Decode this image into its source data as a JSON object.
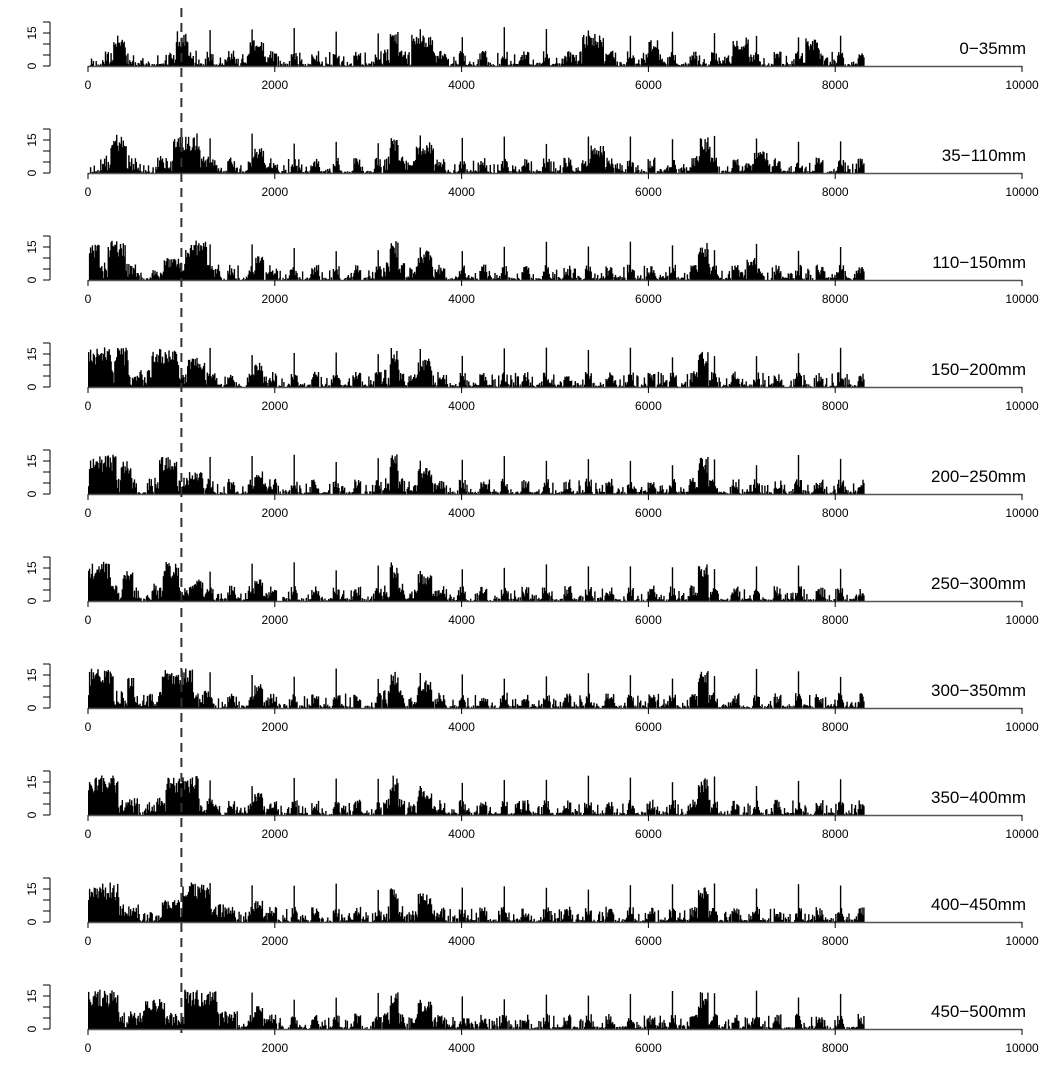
{
  "chart_data": {
    "type": "bar",
    "layout": "10 stacked panels sharing a common x-axis",
    "xlim": [
      0,
      10000
    ],
    "ylim": [
      0,
      20
    ],
    "xticks": [
      0,
      2000,
      4000,
      6000,
      8000,
      10000
    ],
    "xtick_labels": [
      "0",
      "2000",
      "4000",
      "6000",
      "8000",
      "10000"
    ],
    "yticks": [
      0,
      15
    ],
    "ytick_labels": [
      "0",
      "15"
    ],
    "reference_line": {
      "x": 1000,
      "style": "dashed"
    },
    "data_extent": [
      0,
      8300
    ],
    "grid": false,
    "colors": {
      "bars": "#000000",
      "background": "#ffffff"
    },
    "panels": [
      {
        "label": "0−35mm",
        "clusters": [
          [
            330,
            70,
            14
          ],
          [
            1000,
            70,
            16
          ],
          [
            1800,
            80,
            12
          ],
          [
            3270,
            50,
            17
          ],
          [
            3570,
            120,
            15
          ],
          [
            5400,
            120,
            15
          ],
          [
            6050,
            60,
            12
          ],
          [
            6980,
            90,
            13
          ],
          [
            7750,
            80,
            13
          ]
        ]
      },
      {
        "label": "35−110mm",
        "clusters": [
          [
            320,
            90,
            18
          ],
          [
            1050,
            150,
            18
          ],
          [
            1820,
            60,
            12
          ],
          [
            3270,
            50,
            17
          ],
          [
            3600,
            100,
            14
          ],
          [
            5450,
            80,
            13
          ],
          [
            6600,
            60,
            17
          ],
          [
            7200,
            80,
            10
          ]
        ]
      },
      {
        "label": "110−150mm",
        "clusters": [
          [
            60,
            60,
            18
          ],
          [
            300,
            100,
            18
          ],
          [
            900,
            100,
            10
          ],
          [
            1150,
            120,
            18
          ],
          [
            1830,
            50,
            11
          ],
          [
            3270,
            50,
            18
          ],
          [
            3600,
            80,
            14
          ],
          [
            6580,
            60,
            17
          ],
          [
            7100,
            60,
            10
          ]
        ]
      },
      {
        "label": "150−200mm",
        "clusters": [
          [
            100,
            150,
            18
          ],
          [
            350,
            80,
            18
          ],
          [
            820,
            150,
            18
          ],
          [
            1150,
            100,
            14
          ],
          [
            1820,
            50,
            11
          ],
          [
            3270,
            50,
            18
          ],
          [
            3600,
            80,
            13
          ],
          [
            6580,
            60,
            17
          ]
        ]
      },
      {
        "label": "200−250mm",
        "clusters": [
          [
            150,
            150,
            18
          ],
          [
            400,
            60,
            16
          ],
          [
            850,
            100,
            18
          ],
          [
            1150,
            80,
            10
          ],
          [
            1820,
            50,
            11
          ],
          [
            3270,
            50,
            18
          ],
          [
            3600,
            80,
            13
          ],
          [
            6580,
            60,
            17
          ]
        ]
      },
      {
        "label": "250−300mm",
        "clusters": [
          [
            80,
            100,
            18
          ],
          [
            180,
            60,
            18
          ],
          [
            420,
            60,
            14
          ],
          [
            880,
            90,
            18
          ],
          [
            1150,
            80,
            10
          ],
          [
            1820,
            50,
            11
          ],
          [
            3270,
            50,
            18
          ],
          [
            3600,
            80,
            13
          ],
          [
            6580,
            60,
            17
          ]
        ]
      },
      {
        "label": "300−350mm",
        "clusters": [
          [
            60,
            60,
            18
          ],
          [
            180,
            90,
            18
          ],
          [
            450,
            40,
            14
          ],
          [
            950,
            170,
            18
          ],
          [
            1820,
            50,
            11
          ],
          [
            3270,
            50,
            18
          ],
          [
            3600,
            80,
            13
          ],
          [
            6580,
            60,
            17
          ]
        ]
      },
      {
        "label": "350−400mm",
        "clusters": [
          [
            150,
            170,
            18
          ],
          [
            880,
            60,
            16
          ],
          [
            1000,
            180,
            18
          ],
          [
            1820,
            50,
            11
          ],
          [
            3270,
            50,
            18
          ],
          [
            3600,
            80,
            13
          ],
          [
            6580,
            60,
            17
          ]
        ]
      },
      {
        "label": "400−450mm",
        "clusters": [
          [
            150,
            180,
            18
          ],
          [
            880,
            100,
            10
          ],
          [
            1150,
            150,
            18
          ],
          [
            1820,
            50,
            11
          ],
          [
            3270,
            50,
            18
          ],
          [
            3600,
            80,
            13
          ],
          [
            6580,
            60,
            17
          ]
        ]
      },
      {
        "label": "450−500mm",
        "clusters": [
          [
            120,
            200,
            18
          ],
          [
            700,
            120,
            14
          ],
          [
            1200,
            180,
            18
          ],
          [
            1820,
            50,
            11
          ],
          [
            3270,
            50,
            18
          ],
          [
            3600,
            80,
            13
          ],
          [
            6580,
            60,
            17
          ]
        ]
      }
    ]
  }
}
